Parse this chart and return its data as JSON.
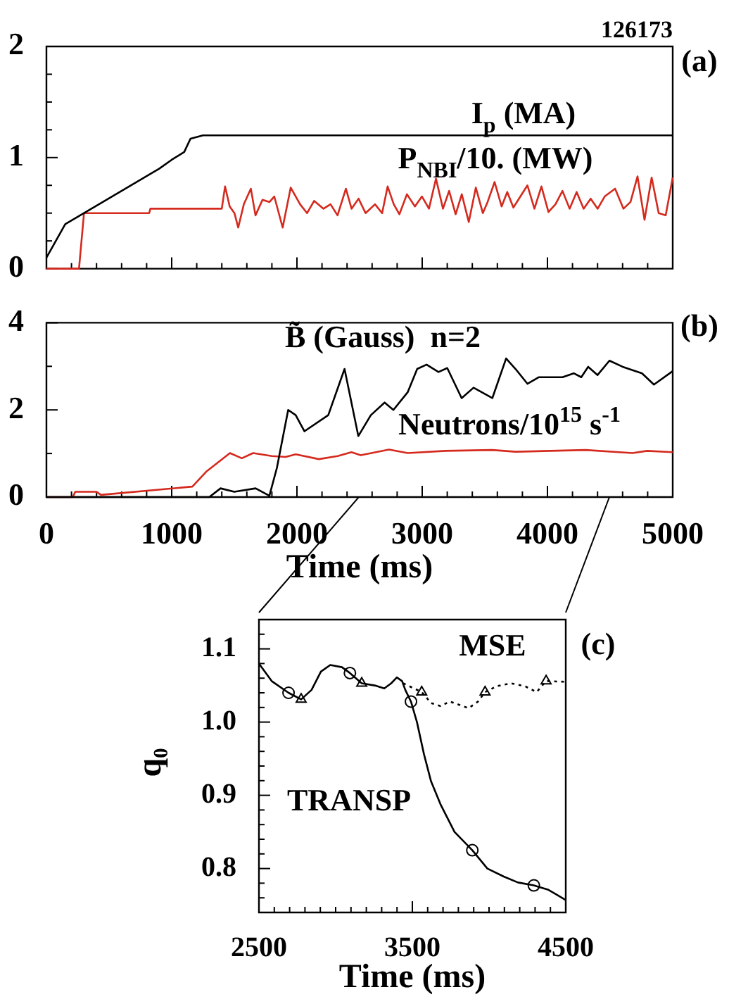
{
  "chart_data": [
    {
      "type": "line",
      "legend": false,
      "grid": false,
      "marker": "none",
      "tick_labels": "y",
      "xlim": [
        0,
        5000
      ],
      "xticks": [
        0,
        {
          "value": 200,
          "label": null
        },
        {
          "value": 400,
          "label": null
        },
        {
          "value": 600,
          "label": null
        },
        {
          "value": 800,
          "label": null
        },
        1000,
        {
          "value": 1200,
          "label": null
        },
        {
          "value": 1400,
          "label": null
        },
        {
          "value": 1600,
          "label": null
        },
        {
          "value": 1800,
          "label": null
        },
        2000,
        {
          "value": 2200,
          "label": null
        },
        {
          "value": 2400,
          "label": null
        },
        {
          "value": 2600,
          "label": null
        },
        {
          "value": 2800,
          "label": null
        },
        3000,
        {
          "value": 3200,
          "label": null
        },
        {
          "value": 3400,
          "label": null
        },
        {
          "value": 3600,
          "label": null
        },
        {
          "value": 3800,
          "label": null
        },
        4000,
        {
          "value": 4200,
          "label": null
        },
        {
          "value": 4400,
          "label": null
        },
        {
          "value": 4600,
          "label": null
        },
        {
          "value": 4800,
          "label": null
        },
        5000
      ],
      "ylim": [
        0,
        2
      ],
      "yticks": [
        0,
        {
          "value": 0.25,
          "label": null
        },
        {
          "value": 0.5,
          "label": null
        },
        {
          "value": 0.75,
          "label": null
        },
        1,
        {
          "value": 1.25,
          "label": null
        },
        {
          "value": 1.5,
          "label": null
        },
        {
          "value": 1.75,
          "label": null
        },
        2
      ],
      "annotations": [
        "126173",
        "(a)"
      ],
      "series": [
        {
          "name": "I$_{p}$ (MA)",
          "color": "#000000",
          "x": [
            0,
            50,
            150,
            300,
            600,
            900,
            1000,
            1100,
            1150,
            1250,
            5000
          ],
          "values": [
            0.1,
            0.2,
            0.4,
            0.5,
            0.7,
            0.9,
            0.98,
            1.05,
            1.17,
            1.2,
            1.2
          ]
        },
        {
          "name": "P$_{NBI}$/10. (MW)",
          "color": "#d42a1e",
          "x": [
            0,
            260,
            300,
            820,
            830,
            1400,
            1426,
            1463,
            1501,
            1531,
            1576,
            1632,
            1669,
            1725,
            1781,
            1819,
            1886,
            1950,
            2025,
            2081,
            2137,
            2212,
            2268,
            2324,
            2391,
            2436,
            2492,
            2548,
            2623,
            2680,
            2724,
            2773,
            2818,
            2878,
            2942,
            2998,
            3054,
            3110,
            3166,
            3215,
            3267,
            3316,
            3372,
            3428,
            3484,
            3522,
            3578,
            3634,
            3679,
            3728,
            3784,
            3840,
            3896,
            3952,
            4008,
            4064,
            4120,
            4177,
            4233,
            4289,
            4345,
            4401,
            4457,
            4540,
            4607,
            4663,
            4719,
            4775,
            4832,
            4888,
            4944,
            5000
          ],
          "values": [
            0,
            0,
            0.5,
            0.5,
            0.54,
            0.54,
            0.74,
            0.56,
            0.5,
            0.37,
            0.58,
            0.72,
            0.48,
            0.62,
            0.6,
            0.65,
            0.37,
            0.73,
            0.58,
            0.5,
            0.61,
            0.54,
            0.58,
            0.48,
            0.72,
            0.54,
            0.63,
            0.5,
            0.58,
            0.5,
            0.74,
            0.58,
            0.49,
            0.67,
            0.56,
            0.65,
            0.54,
            0.81,
            0.54,
            0.7,
            0.49,
            0.67,
            0.42,
            0.73,
            0.5,
            0.6,
            0.78,
            0.56,
            0.69,
            0.55,
            0.65,
            0.75,
            0.54,
            0.74,
            0.51,
            0.58,
            0.7,
            0.54,
            0.69,
            0.54,
            0.63,
            0.54,
            0.65,
            0.72,
            0.54,
            0.6,
            0.83,
            0.44,
            0.82,
            0.5,
            0.48,
            0.82
          ]
        }
      ]
    },
    {
      "type": "line",
      "legend": false,
      "grid": false,
      "marker": "none",
      "xlabel": "Time (ms)",
      "xlim": [
        0,
        5000
      ],
      "xticks": [
        0,
        {
          "value": 200,
          "label": null
        },
        {
          "value": 400,
          "label": null
        },
        {
          "value": 600,
          "label": null
        },
        {
          "value": 800,
          "label": null
        },
        1000,
        {
          "value": 1200,
          "label": null
        },
        {
          "value": 1400,
          "label": null
        },
        {
          "value": 1600,
          "label": null
        },
        {
          "value": 1800,
          "label": null
        },
        2000,
        {
          "value": 2200,
          "label": null
        },
        {
          "value": 2400,
          "label": null
        },
        {
          "value": 2600,
          "label": null
        },
        {
          "value": 2800,
          "label": null
        },
        3000,
        {
          "value": 3200,
          "label": null
        },
        {
          "value": 3400,
          "label": null
        },
        {
          "value": 3600,
          "label": null
        },
        {
          "value": 3800,
          "label": null
        },
        4000,
        {
          "value": 4200,
          "label": null
        },
        {
          "value": 4400,
          "label": null
        },
        {
          "value": 4600,
          "label": null
        },
        {
          "value": 4800,
          "label": null
        },
        5000
      ],
      "ylim": [
        0,
        4
      ],
      "yticks": [
        0,
        {
          "value": 1,
          "label": null
        },
        2,
        {
          "value": 3,
          "label": null
        },
        4
      ],
      "annotations": [
        "(b)"
      ],
      "series": [
        {
          "name": "B̃ (Gauss)  n=2",
          "color": "#000000",
          "x": [
            0,
            1300,
            1390,
            1500,
            1670,
            1780,
            1840,
            1930,
            1990,
            2060,
            2250,
            2380,
            2490,
            2590,
            2700,
            2770,
            2885,
            2960,
            3035,
            3130,
            3200,
            3315,
            3410,
            3560,
            3670,
            3745,
            3840,
            3930,
            4120,
            4210,
            4270,
            4325,
            4400,
            4495,
            4600,
            4755,
            4850,
            5000
          ],
          "values": [
            0,
            0,
            0.2,
            0.12,
            0.2,
            0.03,
            0.67,
            2.0,
            1.88,
            1.51,
            1.88,
            2.94,
            1.4,
            1.88,
            2.17,
            2.0,
            2.41,
            2.94,
            3.04,
            2.87,
            2.96,
            2.27,
            2.51,
            2.27,
            3.18,
            2.94,
            2.6,
            2.75,
            2.75,
            2.84,
            2.75,
            2.99,
            2.8,
            3.13,
            2.99,
            2.84,
            2.58,
            2.89
          ]
        },
        {
          "name": "Neutrons/10$^{15}$ s$^{-1}$",
          "color": "#d42a1e",
          "x": [
            0,
            210,
            230,
            400,
            435,
            1165,
            1275,
            1465,
            1560,
            1650,
            1800,
            1910,
            1990,
            2175,
            2325,
            2435,
            2510,
            2735,
            2885,
            3185,
            3560,
            3745,
            4305,
            4680,
            4795,
            5000
          ],
          "values": [
            0,
            0,
            0.12,
            0.12,
            0.05,
            0.24,
            0.58,
            1.01,
            0.89,
            1.01,
            0.94,
            0.92,
            0.98,
            0.87,
            0.94,
            1.03,
            0.96,
            1.09,
            1.01,
            1.06,
            1.08,
            1.04,
            1.08,
            1.01,
            1.06,
            1.03
          ]
        }
      ]
    },
    {
      "type": "line",
      "legend": false,
      "grid": false,
      "marker": "none",
      "xlabel": "Time (ms)",
      "ylabel": "q₀",
      "xlim": [
        2500,
        4500
      ],
      "xticks": [
        2500,
        {
          "value": 2600,
          "label": null
        },
        {
          "value": 2700,
          "label": null
        },
        {
          "value": 2800,
          "label": null
        },
        {
          "value": 2900,
          "label": null
        },
        {
          "value": 3000,
          "label": null
        },
        {
          "value": 3100,
          "label": null
        },
        {
          "value": 3200,
          "label": null
        },
        {
          "value": 3300,
          "label": null
        },
        {
          "value": 3400,
          "label": null
        },
        3500,
        {
          "value": 3600,
          "label": null
        },
        {
          "value": 3700,
          "label": null
        },
        {
          "value": 3800,
          "label": null
        },
        {
          "value": 3900,
          "label": null
        },
        {
          "value": 4000,
          "label": null
        },
        {
          "value": 4100,
          "label": null
        },
        {
          "value": 4200,
          "label": null
        },
        {
          "value": 4300,
          "label": null
        },
        {
          "value": 4400,
          "label": null
        },
        4500
      ],
      "ylim": [
        0.74,
        1.14
      ],
      "yticks": [
        {
          "value": 0.76,
          "label": null
        },
        {
          "value": 0.78,
          "label": null
        },
        0.8,
        {
          "value": 0.82,
          "label": null
        },
        {
          "value": 0.84,
          "label": null
        },
        {
          "value": 0.86,
          "label": null
        },
        {
          "value": 0.88,
          "label": null
        },
        0.9,
        {
          "value": 0.92,
          "label": null
        },
        {
          "value": 0.94,
          "label": null
        },
        {
          "value": 0.96,
          "label": null
        },
        {
          "value": 0.98,
          "label": null
        },
        {
          "value": 1,
          "label": "1.0"
        },
        {
          "value": 1.02,
          "label": null
        },
        {
          "value": 1.04,
          "label": null
        },
        {
          "value": 1.06,
          "label": null
        },
        {
          "value": 1.08,
          "label": null
        },
        1.1,
        {
          "value": 1.12,
          "label": null
        }
      ],
      "annotations": [
        "(c)"
      ],
      "series": [
        {
          "name": "TRANSP",
          "color": "#000000",
          "line_style": "solid",
          "x": [
            2500,
            2583,
            2693,
            2775,
            2843,
            2904,
            2965,
            3041,
            3093,
            3170,
            3255,
            3317,
            3362,
            3399,
            3433,
            3454,
            3491,
            3530,
            3576,
            3622,
            3683,
            3775,
            3891,
            3989,
            4096,
            4188,
            4292,
            4387,
            4500
          ],
          "values": [
            1.08,
            1.056,
            1.04,
            1.031,
            1.044,
            1.069,
            1.078,
            1.075,
            1.067,
            1.053,
            1.05,
            1.046,
            1.053,
            1.061,
            1.056,
            1.044,
            1.028,
            1.0,
            0.956,
            0.919,
            0.888,
            0.85,
            0.825,
            0.8,
            0.789,
            0.781,
            0.777,
            0.771,
            0.757
          ]
        },
        {
          "type": "scatter",
          "color": "#000000",
          "marker": "circle",
          "x": [
            2693,
            3093,
            3491,
            3891,
            4292
          ],
          "values": [
            1.04,
            1.067,
            1.028,
            0.825,
            0.777
          ]
        },
        {
          "name": "MSE",
          "color": "#000000",
          "line_style": "dotted",
          "x": [
            3440,
            3561,
            3622,
            3683,
            3745,
            3867,
            3928,
            3974,
            4050,
            4142,
            4234,
            4310,
            4372,
            4500
          ],
          "values": [
            1.053,
            1.041,
            1.026,
            1.022,
            1.028,
            1.019,
            1.028,
            1.041,
            1.049,
            1.053,
            1.049,
            1.041,
            1.056,
            1.055
          ]
        },
        {
          "type": "scatter",
          "color": "#000000",
          "marker": "triangle",
          "x": [
            2775,
            3170,
            3561,
            3974,
            4372
          ],
          "values": [
            1.031,
            1.053,
            1.041,
            1.041,
            1.056
          ]
        }
      ]
    }
  ]
}
